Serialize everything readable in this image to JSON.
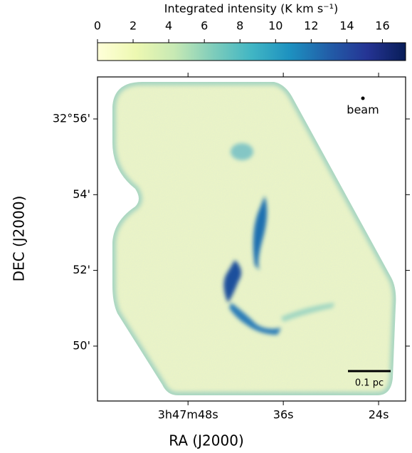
{
  "chart_data": {
    "type": "image",
    "colorbar": {
      "label": "Integrated intensity (K km s⁻¹)",
      "clim": [
        0,
        17.3
      ],
      "ticks": [
        0,
        2,
        4,
        6,
        8,
        10,
        12,
        14,
        16
      ],
      "colors": [
        "#ffffd9",
        "#edf8b1",
        "#c7e9b4",
        "#7fcdbb",
        "#41b6c4",
        "#1d91c0",
        "#225ea8",
        "#253494",
        "#081d58"
      ]
    },
    "x_label": "RA (J2000)",
    "y_label": "DEC (J2000)",
    "xlim": [
      59.4,
      20.6
    ],
    "xticks": [
      {
        "value": 48,
        "label": "3h47m48s"
      },
      {
        "value": 36,
        "label": "36s"
      },
      {
        "value": 24,
        "label": "24s"
      }
    ],
    "ylim": [
      48.55,
      57.11
    ],
    "yticks": [
      {
        "value": 56,
        "label": "32°56'"
      },
      {
        "value": 54,
        "label": "54'"
      },
      {
        "value": 52,
        "label": "52'"
      },
      {
        "value": 50,
        "label": "50'"
      }
    ],
    "annotations": [
      "beam",
      "0.1 pc"
    ]
  }
}
